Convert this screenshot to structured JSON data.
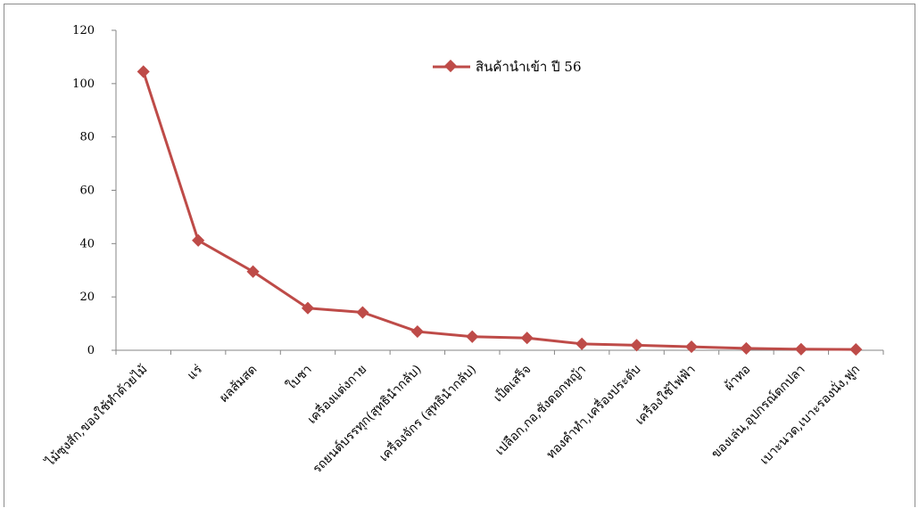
{
  "chart_data": {
    "type": "line",
    "title": "",
    "xlabel": "",
    "ylabel": "",
    "ylim": [
      0,
      120
    ],
    "yticks": [
      "0",
      "20",
      "40",
      "60",
      "80",
      "100",
      "120"
    ],
    "categories": [
      "ไม้ซุงสัก,ของใช้ทำด้วยไม้",
      "แร่",
      "ผลส้มสด",
      "ใบชา",
      "เครื่องแต่งกาย",
      "รถยนต์บรรทุก(สุทธินำกลับ)",
      "เครื่องจักร (สุทธินำกลับ)",
      "เป็ดเสร็จ",
      "เปลือก,กอ,ซังดอกหญ้า",
      "ทองคำทำ,เครื่องประดับ",
      "เครื่องใช้ไฟฟ้า",
      "ผ้าทอ",
      "ของเล่น,อุปกรณ์ตกปลา",
      "เบาะนวด,เบาะรองนั่ง,ฟูก"
    ],
    "series": [
      {
        "name": "สินค้านำเข้า ปี 56",
        "color": "#be4b48",
        "values": [
          104.5,
          41.2,
          29.5,
          15.8,
          14.2,
          7.0,
          5.1,
          4.6,
          2.4,
          1.9,
          1.3,
          0.7,
          0.4,
          0.3
        ]
      }
    ],
    "legend_position": "top-right",
    "grid": false
  }
}
